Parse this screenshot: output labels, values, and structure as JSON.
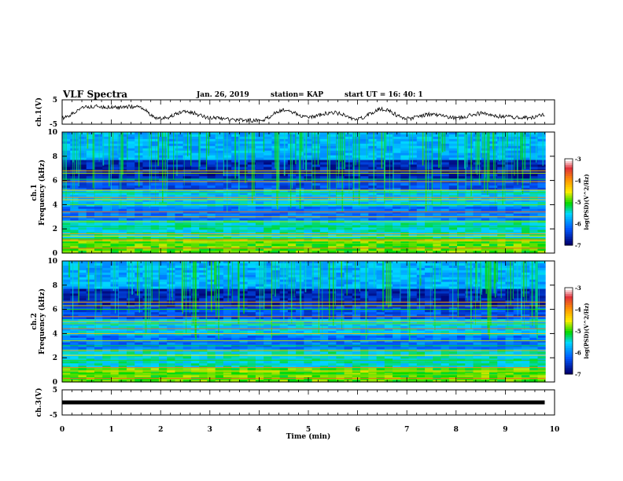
{
  "header": {
    "title": "VLF Spectra",
    "date": "Jan. 26, 2019",
    "station": "station= KAP",
    "start": "start UT =  16: 40: 1"
  },
  "chart_data": [
    {
      "type": "line",
      "panel": "ch1-voltage",
      "ylabel": "ch.1(V)",
      "ylim": [
        -5,
        5
      ],
      "yticks": [
        "5",
        "-5"
      ],
      "x": [
        0,
        0.5,
        1,
        1.5,
        2,
        2.5,
        3,
        3.5,
        4,
        4.5,
        5,
        5.5,
        6,
        6.5,
        7,
        7.5,
        8,
        8.5,
        9,
        9.5,
        9.8
      ],
      "values": [
        -2.5,
        2.3,
        2.0,
        2.2,
        -2.8,
        0.2,
        -2.2,
        -3.2,
        -3.6,
        0.6,
        -2.1,
        -0.3,
        -2.8,
        1.2,
        -2.7,
        -0.9,
        -2.4,
        -0.6,
        -2.0,
        -2.4,
        -1.0
      ],
      "color": "#000000"
    },
    {
      "type": "heatmap",
      "panel": "ch1-spectrogram",
      "ylabel": "Frequency (kHz)",
      "ylabel_prefix": "ch.1",
      "ylim": [
        0,
        10
      ],
      "yticks": [
        "0",
        "2",
        "4",
        "6",
        "8",
        "10"
      ],
      "colorbar": {
        "label": "log(PSD)(V^2/Hz)",
        "range": [
          -7,
          -3
        ],
        "ticks": [
          "-3",
          "-4",
          "-5",
          "-6",
          "-7"
        ],
        "colors": [
          "#ffffff",
          "#e0303a",
          "#ff9a00",
          "#ffee00",
          "#00d900",
          "#00d8ff",
          "#0058ff",
          "#000070"
        ]
      },
      "bands_khz": [
        0.4,
        0.8,
        1.0,
        1.1,
        1.2,
        1.4,
        1.6,
        2.2,
        2.6,
        3.0,
        3.4,
        4.0,
        4.4,
        4.6,
        5.0,
        5.2,
        5.9,
        6.1,
        6.6,
        6.8
      ]
    },
    {
      "type": "heatmap",
      "panel": "ch2-spectrogram",
      "ylabel": "Frequency (kHz)",
      "ylabel_prefix": "ch.2",
      "ylim": [
        0,
        10
      ],
      "yticks": [
        "0",
        "2",
        "4",
        "6",
        "8",
        "10"
      ],
      "colorbar": {
        "label": "log(PSD)(V^2/Hz)",
        "range": [
          -7,
          -3
        ],
        "ticks": [
          "-3",
          "-4",
          "-5",
          "-6",
          "-7"
        ],
        "colors": [
          "#ffffff",
          "#e0303a",
          "#ff9a00",
          "#ffee00",
          "#00d900",
          "#00d8ff",
          "#0058ff",
          "#000070"
        ]
      },
      "bands_khz": [
        0.3,
        0.6,
        0.9,
        1.2,
        1.8,
        2.2,
        2.6,
        3.0,
        3.4,
        4.0,
        4.4,
        4.8,
        5.0,
        5.4,
        6.0,
        6.3,
        6.6
      ]
    },
    {
      "type": "line",
      "panel": "ch3-voltage",
      "ylabel": "ch.3(V)",
      "ylim": [
        -5,
        5
      ],
      "yticks": [
        "5",
        "-5"
      ],
      "x": [
        0,
        9.8
      ],
      "values": [
        0,
        0
      ],
      "color": "#000000"
    }
  ],
  "xaxis": {
    "label": "Time (min)",
    "xlim": [
      0,
      10
    ],
    "ticks": [
      "0",
      "1",
      "2",
      "3",
      "4",
      "5",
      "6",
      "7",
      "8",
      "9",
      "10"
    ]
  }
}
